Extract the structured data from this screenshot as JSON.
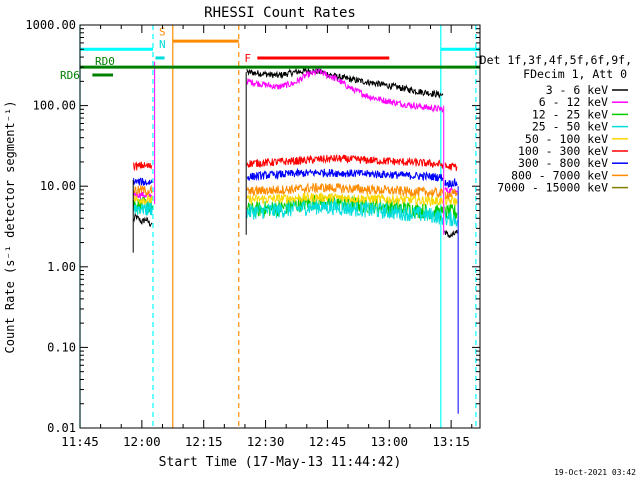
{
  "chart_data": {
    "type": "line",
    "title": "RHESSI Count Rates",
    "xlabel": "Start Time (17-May-13 11:44:42)",
    "ylabel": "Count Rate (s⁻¹ detector segment⁻¹)",
    "yscale": "log",
    "ylim": [
      0.01,
      1000
    ],
    "xlim_minutes_from_1145": [
      0,
      97
    ],
    "x_ticks": [
      "11:45",
      "12:00",
      "12:15",
      "12:30",
      "12:45",
      "13:00",
      "13:15"
    ],
    "y_ticks": [
      "1000.00",
      "100.00",
      "10.00",
      "1.00",
      "0.10",
      "0.01"
    ],
    "legend_header": [
      "Det 1f,3f,4f,5f,6f,9f,",
      "FDecim 1, Att 0"
    ],
    "series": [
      {
        "name": "3 - 6 keV",
        "color": "#000000",
        "segments": [
          {
            "t": [
              13.0,
              13.5,
              14.0,
              15.0,
              16.0,
              17.0,
              17.5
            ],
            "v": [
              3.8,
              4.2,
              4.0,
              3.6,
              3.9,
              3.4,
              3.5
            ]
          },
          {
            "t": [
              40.5,
              44,
              48,
              52,
              55,
              58,
              62,
              66,
              70,
              74,
              78,
              82,
              86,
              88
            ],
            "v": [
              260,
              250,
              235,
              260,
              270,
              265,
              230,
              210,
              195,
              180,
              165,
              150,
              140,
              135
            ]
          },
          {
            "t": [
              88.5,
              89,
              90,
              91,
              91.5
            ],
            "v": [
              2.8,
              2.5,
              2.4,
              2.6,
              2.6
            ]
          }
        ]
      },
      {
        "name": "6 - 12 keV",
        "color": "#ff00ff",
        "segments": [
          {
            "t": [
              13.0,
              14,
              15,
              16,
              17,
              17.5
            ],
            "v": [
              8.0,
              7.8,
              7.9,
              7.6,
              7.7,
              7.6
            ]
          },
          {
            "t": [
              40.5,
              44,
              48,
              52,
              55,
              58,
              62,
              66,
              70,
              74,
              78,
              82,
              86,
              88
            ],
            "v": [
              200,
              185,
              170,
              190,
              240,
              265,
              215,
              160,
              130,
              115,
              105,
              98,
              92,
              90
            ]
          },
          {
            "t": [
              88.5,
              89.5,
              90.5,
              91.5
            ],
            "v": [
              9.0,
              8.8,
              8.9,
              8.7
            ]
          }
        ]
      },
      {
        "name": "12 - 25 keV",
        "color": "#00cc00",
        "segments": [
          {
            "t": [
              13.0,
              14,
              15,
              16,
              17,
              17.5
            ],
            "v": [
              6.0,
              5.8,
              5.9,
              5.7,
              5.8,
              5.7
            ]
          },
          {
            "t": [
              40.5,
              44,
              48,
              52,
              55,
              58,
              62,
              66,
              70,
              74,
              78,
              82,
              86,
              88
            ],
            "v": [
              5.0,
              5.2,
              5.3,
              5.8,
              6.2,
              6.5,
              6.3,
              6.0,
              5.8,
              5.6,
              5.3,
              5.0,
              4.8,
              4.6
            ]
          },
          {
            "t": [
              88.5,
              89.5,
              90.5,
              91.5
            ],
            "v": [
              4.8,
              4.7,
              4.8,
              4.6
            ]
          }
        ]
      },
      {
        "name": "25 - 50 keV",
        "color": "#00dddd",
        "segments": [
          {
            "t": [
              13.0,
              14,
              15,
              16,
              17,
              17.5
            ],
            "v": [
              5.5,
              5.3,
              5.6,
              5.2,
              5.4,
              5.3
            ]
          },
          {
            "t": [
              40.5,
              44,
              48,
              52,
              55,
              58,
              62,
              66,
              70,
              74,
              78,
              82,
              86,
              88
            ],
            "v": [
              4.8,
              4.9,
              5.0,
              5.2,
              5.5,
              5.6,
              5.5,
              5.3,
              5.1,
              4.9,
              4.7,
              4.5,
              4.3,
              4.1
            ]
          },
          {
            "t": [
              88.5,
              89.5,
              90.5,
              91.5
            ],
            "v": [
              4.0,
              3.9,
              4.0,
              3.8
            ]
          }
        ]
      },
      {
        "name": "50 - 100 keV",
        "color": "#ffd700",
        "segments": [
          {
            "t": [
              13.0,
              14,
              15,
              16,
              17,
              17.5
            ],
            "v": [
              7.0,
              6.8,
              6.9,
              6.7,
              6.8,
              6.7
            ]
          },
          {
            "t": [
              40.5,
              44,
              48,
              52,
              55,
              58,
              62,
              66,
              70,
              74,
              78,
              82,
              86,
              88
            ],
            "v": [
              6.8,
              6.9,
              7.0,
              7.1,
              7.2,
              7.3,
              7.2,
              7.1,
              7.0,
              6.9,
              6.8,
              6.7,
              6.6,
              6.5
            ]
          },
          {
            "t": [
              88.5,
              89.5,
              90.5,
              91.5
            ],
            "v": [
              6.6,
              6.5,
              6.6,
              6.4
            ]
          }
        ]
      },
      {
        "name": "100 - 300 keV",
        "color": "#ff0000",
        "segments": [
          {
            "t": [
              13.0,
              14,
              15,
              16,
              17,
              17.5
            ],
            "v": [
              18,
              17.5,
              18.2,
              17.8,
              17.6,
              17.9
            ]
          },
          {
            "t": [
              40.5,
              44,
              48,
              52,
              55,
              58,
              62,
              66,
              70,
              74,
              78,
              82,
              86,
              88
            ],
            "v": [
              19,
              19.5,
              20,
              20.5,
              21,
              21.5,
              22,
              21.5,
              21,
              20.5,
              20,
              19.5,
              19,
              18.5
            ]
          },
          {
            "t": [
              88.5,
              89.5,
              90.5,
              91.5
            ],
            "v": [
              17.5,
              17.3,
              17.6,
              17.2
            ]
          }
        ]
      },
      {
        "name": "300 - 800 keV",
        "color": "#0000ff",
        "segments": [
          {
            "t": [
              13.0,
              14,
              15,
              16,
              17,
              17.5
            ],
            "v": [
              11.5,
              11.2,
              11.4,
              11.0,
              11.3,
              11.1
            ]
          },
          {
            "t": [
              40.5,
              44,
              48,
              52,
              55,
              58,
              62,
              66,
              70,
              74,
              78,
              82,
              86,
              88
            ],
            "v": [
              13,
              13.5,
              14,
              14.3,
              14.5,
              14.8,
              14.6,
              14.4,
              14.2,
              14,
              13.7,
              13.4,
              13.1,
              12.8
            ]
          },
          {
            "t": [
              88.5,
              89.5,
              90.5,
              91.5
            ],
            "v": [
              11.0,
              10.8,
              11.0,
              10.7
            ]
          }
        ]
      },
      {
        "name": "800 - 7000 keV",
        "color": "#ff8c00",
        "segments": [
          {
            "t": [
              13.0,
              14,
              15,
              16,
              17,
              17.5
            ],
            "v": [
              9.0,
              8.8,
              9.1,
              8.7,
              8.9,
              8.8
            ]
          },
          {
            "t": [
              40.5,
              44,
              48,
              52,
              55,
              58,
              62,
              66,
              70,
              74,
              78,
              82,
              86,
              88
            ],
            "v": [
              8.5,
              8.8,
              9.0,
              9.2,
              9.4,
              9.6,
              9.5,
              9.3,
              9.1,
              8.9,
              8.7,
              8.5,
              8.3,
              8.1
            ]
          },
          {
            "t": [
              88.5,
              89.5,
              90.5,
              91.5
            ],
            "v": [
              8.0,
              7.9,
              8.0,
              7.8
            ]
          }
        ]
      },
      {
        "name": "7000 - 15000 keV",
        "color": "#808000",
        "segments": []
      }
    ],
    "transitions": [
      {
        "t": 12.9,
        "from": 1.5,
        "to": 12
      },
      {
        "t": 18.1,
        "from": 6,
        "to": 350
      },
      {
        "t": 40.3,
        "from": 2.5,
        "to": 260
      },
      {
        "t": 88.2,
        "from": 100,
        "to": 2.5
      },
      {
        "t": 91.7,
        "from": 0.015,
        "to": 10
      }
    ],
    "flags": [
      {
        "label": "RD0",
        "color": "#008000",
        "t_start": 0,
        "t_end": 97,
        "value": 300
      },
      {
        "label": "RD6",
        "color": "#008000",
        "t_start": 3,
        "t_end": 8,
        "value": 240
      },
      {
        "label": "S",
        "color": "#ff8c00",
        "t_start": 22.5,
        "t_end": 38.5,
        "value": 630
      },
      {
        "label": "N",
        "color": "#00dddd",
        "t_start": 18.3,
        "t_end": 20.5,
        "value": 390
      },
      {
        "label": "F",
        "color": "#ff0000",
        "t_start": 43,
        "t_end": 75,
        "value": 390
      },
      {
        "label": "",
        "color": "#00ffff",
        "t_start": 0,
        "t_end": 17.7,
        "value": 500
      },
      {
        "label": "",
        "color": "#00ffff",
        "t_start": 87.5,
        "t_end": 97,
        "value": 500
      }
    ],
    "vlines": [
      {
        "t": 0,
        "color": "#00ffff",
        "style": "solid"
      },
      {
        "t": 17.7,
        "color": "#00ffff",
        "style": "dashed"
      },
      {
        "t": 22.5,
        "color": "#ff8c00",
        "style": "solid"
      },
      {
        "t": 38.5,
        "color": "#ff8c00",
        "style": "dashed"
      },
      {
        "t": 87.5,
        "color": "#00ffff",
        "style": "solid"
      },
      {
        "t": 96.0,
        "color": "#00ffff",
        "style": "dashed"
      }
    ]
  },
  "footer": {
    "timestamp": "19-Oct-2021 03:42"
  }
}
